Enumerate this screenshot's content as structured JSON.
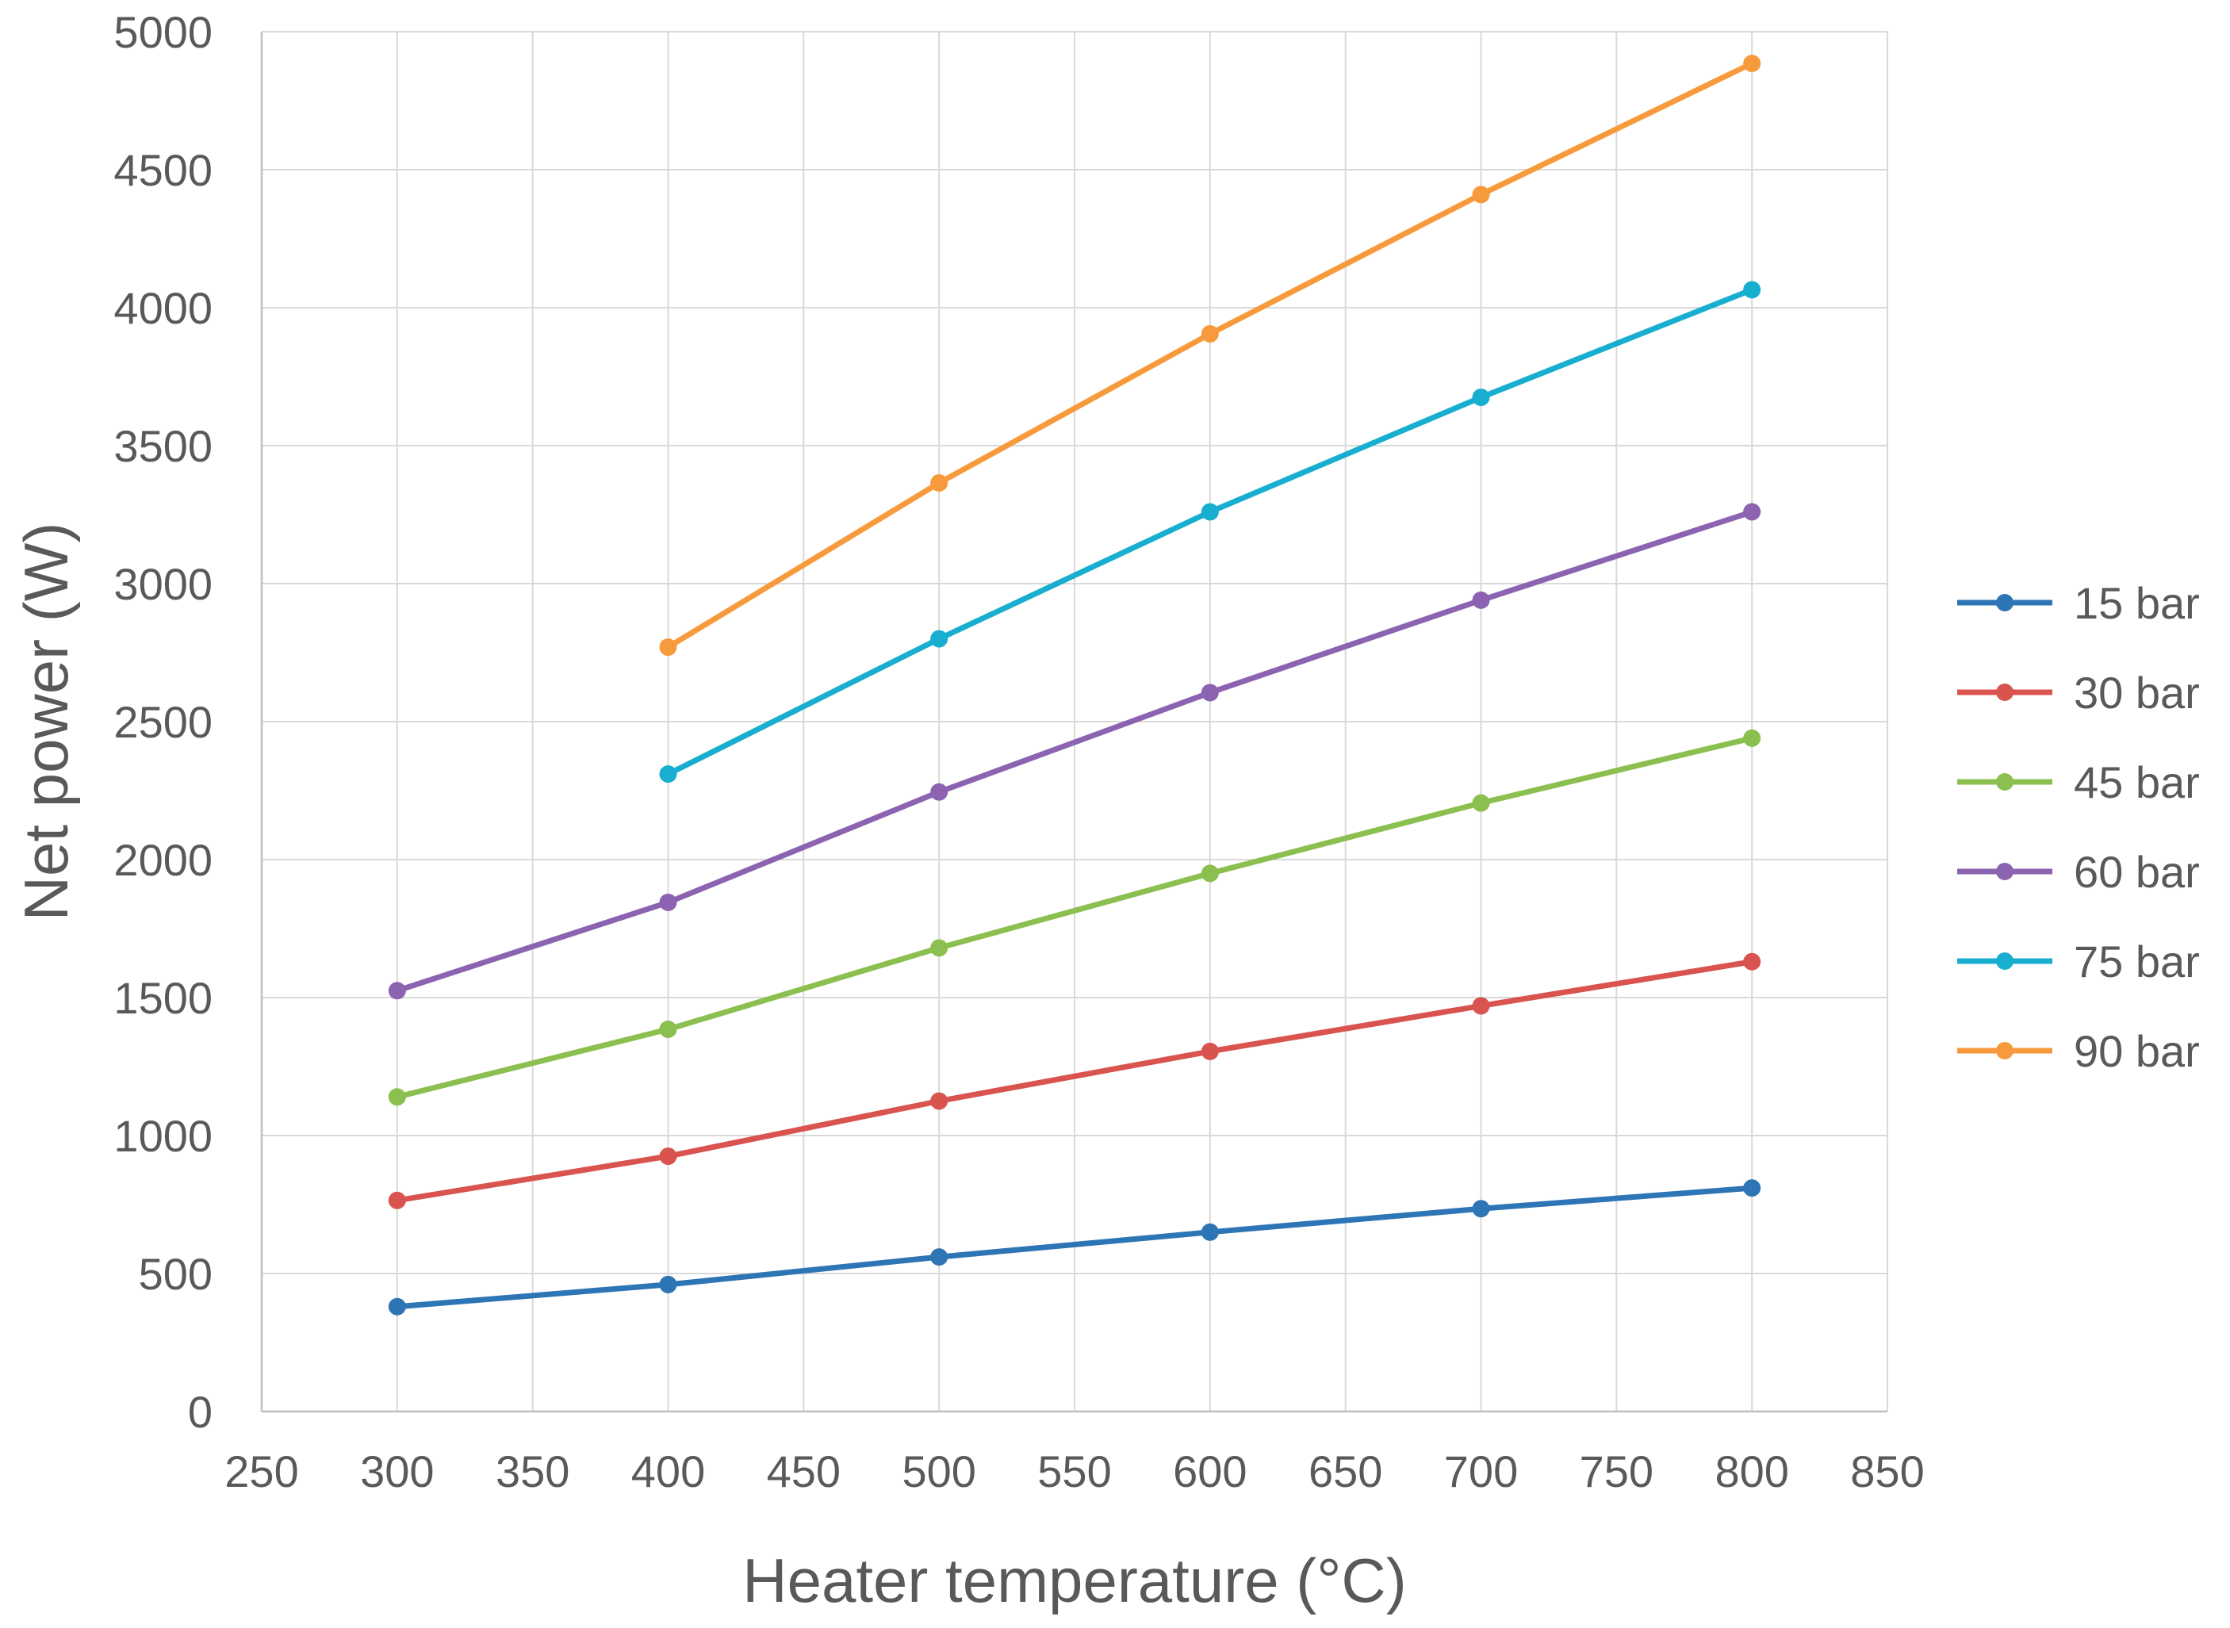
{
  "chart_data": {
    "type": "line",
    "title": "",
    "xlabel": "Heater temperature (°C)",
    "ylabel": "Net power (W)",
    "xlim": [
      250,
      850
    ],
    "ylim": [
      0,
      5000
    ],
    "xticks": [
      250,
      300,
      350,
      400,
      450,
      500,
      550,
      600,
      650,
      700,
      750,
      800,
      850
    ],
    "yticks": [
      0,
      500,
      1000,
      1500,
      2000,
      2500,
      3000,
      3500,
      4000,
      4500,
      5000
    ],
    "grid": true,
    "legend_position": "right",
    "series": [
      {
        "name": "15 bar",
        "color": "#2E75B6",
        "x": [
          300,
          400,
          500,
          600,
          700,
          800
        ],
        "y": [
          380,
          460,
          560,
          650,
          735,
          810
        ]
      },
      {
        "name": "30 bar",
        "color": "#D9534F",
        "x": [
          300,
          400,
          500,
          600,
          700,
          800
        ],
        "y": [
          765,
          925,
          1125,
          1305,
          1470,
          1630
        ]
      },
      {
        "name": "45 bar",
        "color": "#8BBF4F",
        "x": [
          300,
          400,
          500,
          600,
          700,
          800
        ],
        "y": [
          1140,
          1385,
          1680,
          1950,
          2205,
          2440
        ]
      },
      {
        "name": "60 bar",
        "color": "#8B63B0",
        "x": [
          300,
          400,
          500,
          600,
          700,
          800
        ],
        "y": [
          1525,
          1845,
          2245,
          2605,
          2940,
          3260
        ]
      },
      {
        "name": "75 bar",
        "color": "#17AECF",
        "x": [
          400,
          500,
          600,
          700,
          800
        ],
        "y": [
          2310,
          2800,
          3260,
          3675,
          4065
        ]
      },
      {
        "name": "90 bar",
        "color": "#F79A3C",
        "x": [
          400,
          500,
          600,
          700,
          800
        ],
        "y": [
          2770,
          3365,
          3905,
          4410,
          4885
        ]
      }
    ]
  }
}
